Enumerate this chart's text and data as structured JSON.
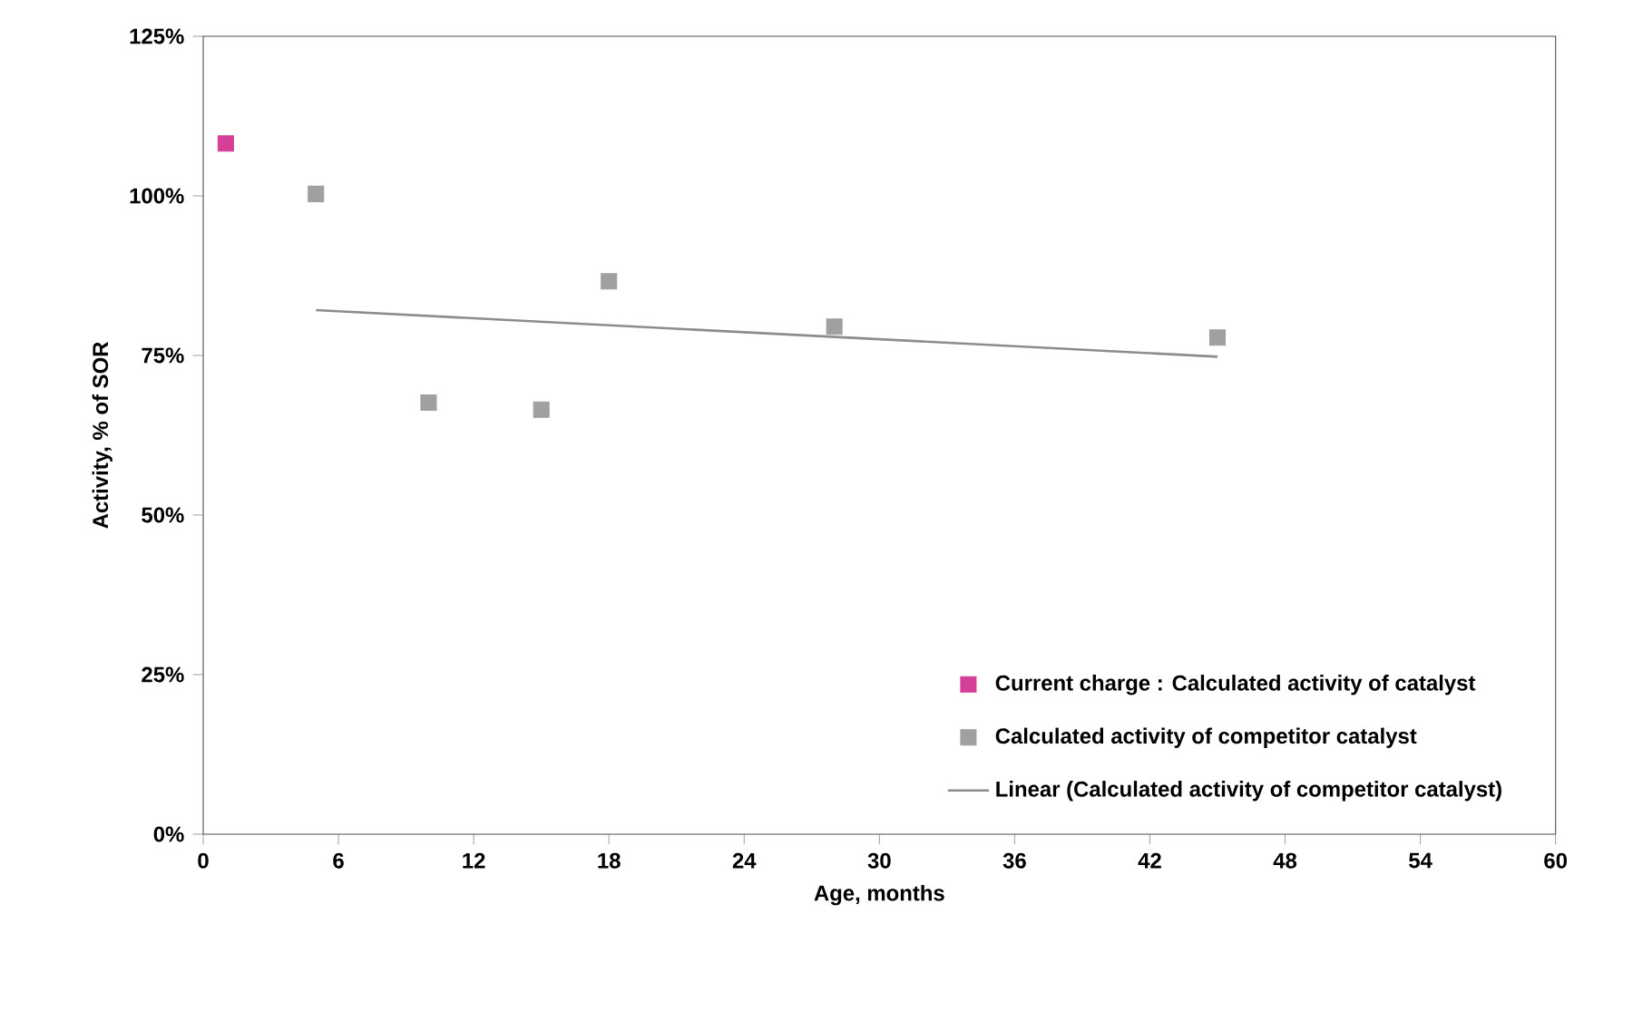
{
  "chart_data": {
    "type": "scatter",
    "xlabel": "Age, months",
    "ylabel": "Activity, % of SOR",
    "xlim": [
      0,
      60
    ],
    "xticks": [
      0,
      6,
      12,
      18,
      24,
      30,
      36,
      42,
      48,
      54,
      60
    ],
    "ylim": [
      0,
      125
    ],
    "yticks": [
      {
        "value": 0,
        "label": "0%"
      },
      {
        "value": 25,
        "label": "25%"
      },
      {
        "value": 50,
        "label": "50%"
      },
      {
        "value": 75,
        "label": "75%"
      },
      {
        "value": 100,
        "label": "100%"
      },
      {
        "value": 125,
        "label": "125%"
      }
    ],
    "marker": "square",
    "grid": false,
    "legend": "bottom right",
    "series": [
      {
        "name": "Current charge : Calculated activity of catalyst",
        "color": "#d43f97",
        "x": [
          1
        ],
        "values": [
          108.2
        ]
      },
      {
        "name": "Calculated activity of competitor catalyst",
        "color": "#a0a0a0",
        "x": [
          5,
          10,
          15,
          18,
          28,
          45
        ],
        "values": [
          100.3,
          67.6,
          66.5,
          86.6,
          79.5,
          77.8
        ]
      },
      {
        "name": "Linear (Calculated activity of competitor catalyst)",
        "type": "line",
        "marker": "none",
        "line_style": "solid",
        "color": "#8c8c8c",
        "x": [
          5,
          45
        ],
        "values": [
          82.1,
          74.8
        ]
      }
    ]
  }
}
